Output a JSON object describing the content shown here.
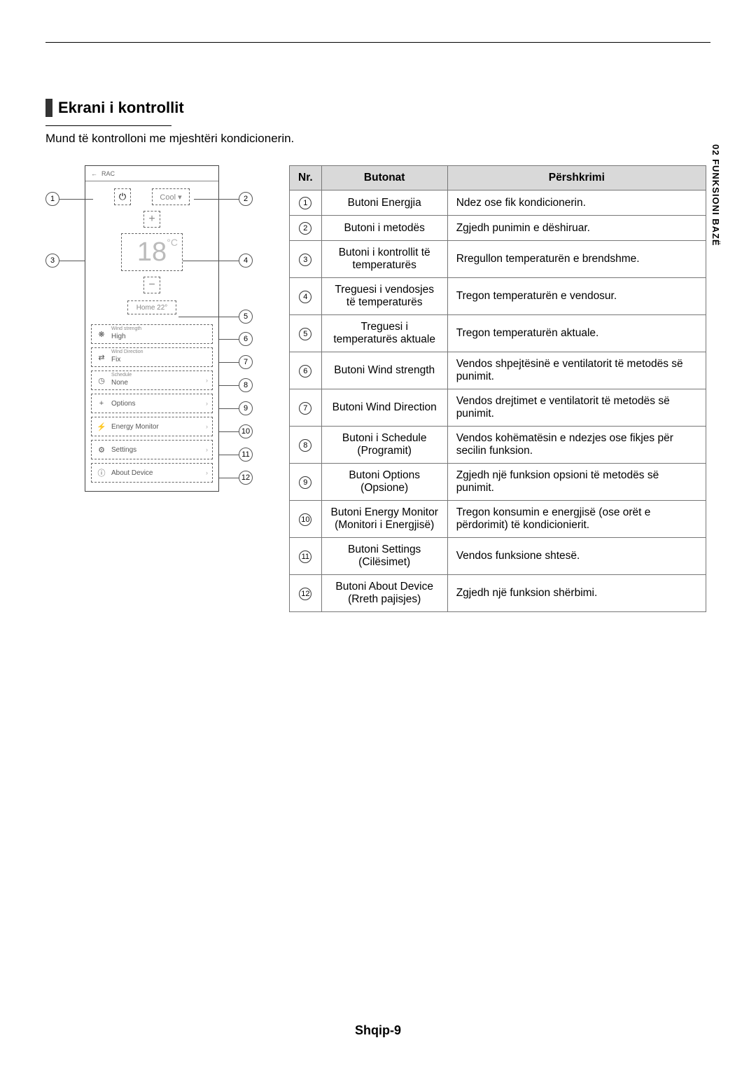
{
  "section": {
    "title": "Ekrani i kontrollit",
    "subtitle": "Mund të kontrolloni me mjeshtëri kondicionerin."
  },
  "side_tab": "02   FUNKSIONI BAZË",
  "footer": "Shqip-9",
  "phone": {
    "header": "RAC",
    "mode": "Cool ▾",
    "temp": "18",
    "temp_unit": "°C",
    "home": "Home 22°",
    "menu": [
      {
        "sub": "Wind strength",
        "label": "High",
        "icon": "❋"
      },
      {
        "sub": "Wind Direction",
        "label": "Fix",
        "icon": "⇄"
      },
      {
        "sub": "Schedule",
        "label": "None",
        "icon": "◷",
        "chev": true
      },
      {
        "label": "Options",
        "icon": "+",
        "chev": true
      },
      {
        "label": "Energy Monitor",
        "icon": "⚡",
        "chev": true
      },
      {
        "label": "Settings",
        "icon": "⚙",
        "chev": true
      },
      {
        "label": "About Device",
        "icon": "ⓘ",
        "chev": true
      }
    ]
  },
  "table": {
    "headers": {
      "nr": "Nr.",
      "btn": "Butonat",
      "desc": "Përshkrimi"
    },
    "rows": [
      {
        "n": "1",
        "btn": "Butoni Energjia",
        "desc": "Ndez ose fik kondicionerin."
      },
      {
        "n": "2",
        "btn": "Butoni i metodës",
        "desc": "Zgjedh punimin e dëshiruar."
      },
      {
        "n": "3",
        "btn": "Butoni i kontrollit të temperaturës",
        "desc": "Rregullon temperaturën e brendshme."
      },
      {
        "n": "4",
        "btn": "Treguesi i vendosjes të temperaturës",
        "desc": "Tregon temperaturën e vendosur."
      },
      {
        "n": "5",
        "btn": "Treguesi i temperaturës aktuale",
        "desc": "Tregon temperaturën aktuale."
      },
      {
        "n": "6",
        "btn": "Butoni Wind strength",
        "desc": "Vendos shpejtësinë e ventilatorit të metodës së punimit."
      },
      {
        "n": "7",
        "btn": "Butoni Wind Direction",
        "desc": "Vendos drejtimet e ventilatorit të metodës së punimit."
      },
      {
        "n": "8",
        "btn": "Butoni i Schedule (Programit)",
        "desc": "Vendos kohëmatësin e ndezjes ose fikjes për secilin funksion."
      },
      {
        "n": "9",
        "btn": "Butoni Options (Opsione)",
        "desc": "Zgjedh një funksion opsioni të metodës së punimit."
      },
      {
        "n": "10",
        "btn": "Butoni Energy Monitor (Monitori i Energjisë)",
        "desc": "Tregon konsumin e energjisë (ose orët e përdorimit) të kondicionierit."
      },
      {
        "n": "11",
        "btn": "Butoni Settings (Cilësimet)",
        "desc": "Vendos funksione shtesë."
      },
      {
        "n": "12",
        "btn": "Butoni About Device (Rreth pajisjes)",
        "desc": "Zgjedh një funksion shërbimi."
      }
    ]
  },
  "colors": {
    "header_bg": "#d9d9d9",
    "border": "#777777",
    "dash": "#666666",
    "text": "#000000"
  }
}
